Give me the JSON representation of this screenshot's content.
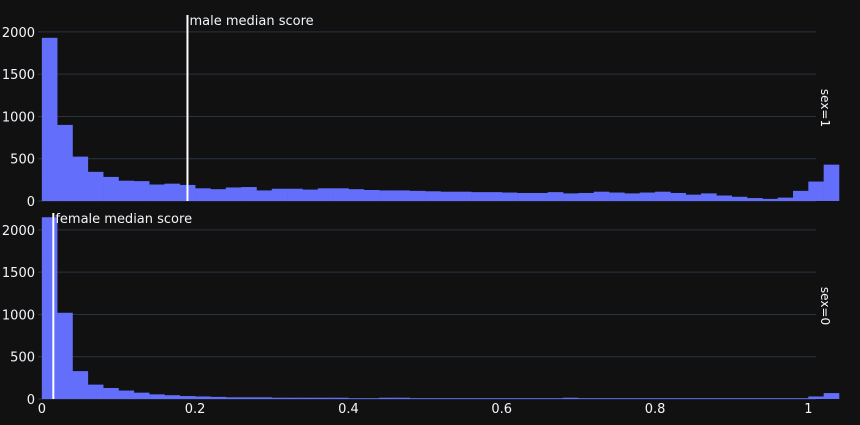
{
  "chart_data": [
    {
      "type": "bar",
      "facet_label": "sex=1",
      "bar_color": "#636efa",
      "bins_start": 0,
      "bin_width": 0.02,
      "values": [
        1930,
        900,
        525,
        345,
        285,
        240,
        235,
        195,
        205,
        190,
        150,
        140,
        160,
        165,
        125,
        145,
        145,
        135,
        150,
        150,
        140,
        130,
        125,
        125,
        120,
        115,
        110,
        110,
        105,
        105,
        100,
        95,
        95,
        105,
        90,
        95,
        110,
        100,
        90,
        100,
        110,
        95,
        75,
        90,
        65,
        50,
        35,
        25,
        40,
        120,
        230,
        430
      ],
      "ylim": [
        0,
        2200
      ],
      "yticks": [
        0,
        500,
        1000,
        1500,
        2000
      ],
      "grid": true,
      "vline": {
        "x": 0.19,
        "label": "male median score",
        "color": "#ffffff"
      }
    },
    {
      "type": "bar",
      "facet_label": "sex=0",
      "bar_color": "#636efa",
      "bins_start": 0,
      "bin_width": 0.02,
      "values": [
        2150,
        1020,
        330,
        170,
        130,
        100,
        75,
        55,
        45,
        35,
        30,
        25,
        20,
        20,
        20,
        15,
        15,
        15,
        15,
        15,
        10,
        10,
        15,
        15,
        10,
        10,
        10,
        10,
        10,
        10,
        10,
        10,
        10,
        10,
        15,
        10,
        10,
        10,
        10,
        10,
        10,
        10,
        10,
        10,
        10,
        10,
        10,
        10,
        10,
        10,
        30,
        70
      ],
      "ylim": [
        0,
        2200
      ],
      "yticks": [
        0,
        500,
        1000,
        1500,
        2000
      ],
      "grid": true,
      "vline": {
        "x": 0.015,
        "label": "female median score",
        "color": "#ffffff"
      }
    }
  ],
  "xaxis": {
    "ticks": [
      0,
      0.2,
      0.4,
      0.6,
      0.8,
      1
    ],
    "tick_labels": [
      "0",
      "0.2",
      "0.4",
      "0.6",
      "0.8",
      "1"
    ],
    "range": [
      -0.005,
      1.01
    ]
  },
  "theme": {
    "background": "#111111",
    "grid": "#283442",
    "text": "#f2f5fa"
  }
}
